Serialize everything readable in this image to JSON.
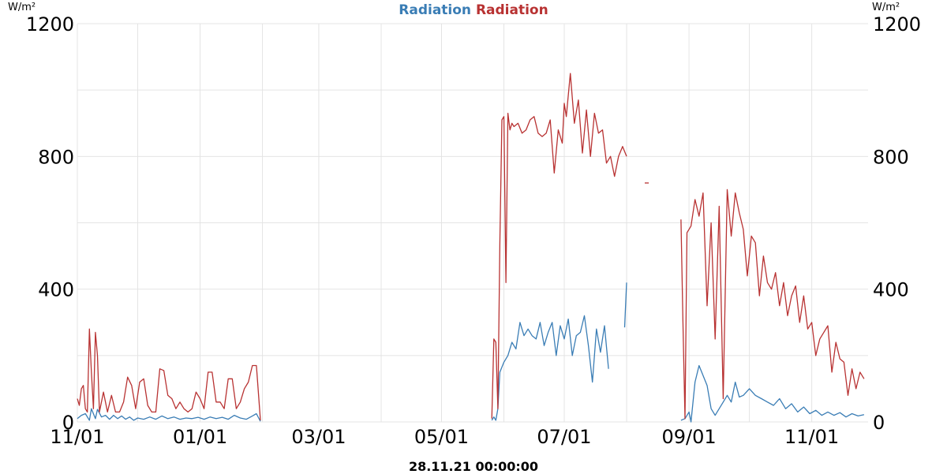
{
  "chart_data": {
    "type": "line",
    "title_parts": [
      "Radiation",
      "Radiation"
    ],
    "unit_left": "W/m²",
    "unit_right": "W/m²",
    "timestamp": "28.11.21 00:00:00",
    "x_ticks": [
      "11/01",
      "01/01",
      "03/01",
      "05/01",
      "07/01",
      "09/01",
      "11/01"
    ],
    "x_tick_dates": [
      "2020-11-01",
      "2021-01-01",
      "2021-03-01",
      "2021-05-01",
      "2021-07-01",
      "2021-09-01",
      "2021-11-01"
    ],
    "xlim": [
      "2020-11-01",
      "2021-11-29"
    ],
    "ylim": [
      0,
      1200
    ],
    "y_ticks": [
      0,
      400,
      800,
      1200
    ],
    "grid": true,
    "series": [
      {
        "name": "Radiation",
        "color": "#3a7db5",
        "segments": [
          [
            [
              "2020-11-01",
              10
            ],
            [
              "2020-11-03",
              20
            ],
            [
              "2020-11-05",
              25
            ],
            [
              "2020-11-07",
              5
            ],
            [
              "2020-11-08",
              40
            ],
            [
              "2020-11-10",
              10
            ],
            [
              "2020-11-11",
              38
            ],
            [
              "2020-11-13",
              15
            ],
            [
              "2020-11-15",
              20
            ],
            [
              "2020-11-17",
              8
            ],
            [
              "2020-11-19",
              20
            ],
            [
              "2020-11-21",
              10
            ],
            [
              "2020-11-23",
              18
            ],
            [
              "2020-11-25",
              8
            ],
            [
              "2020-11-27",
              15
            ],
            [
              "2020-11-29",
              5
            ],
            [
              "2020-12-01",
              12
            ],
            [
              "2020-12-04",
              8
            ],
            [
              "2020-12-07",
              15
            ],
            [
              "2020-12-10",
              8
            ],
            [
              "2020-12-13",
              18
            ],
            [
              "2020-12-16",
              10
            ],
            [
              "2020-12-19",
              15
            ],
            [
              "2020-12-22",
              8
            ],
            [
              "2020-12-25",
              12
            ],
            [
              "2020-12-28",
              10
            ],
            [
              "2020-12-31",
              14
            ],
            [
              "2021-01-03",
              8
            ],
            [
              "2021-01-06",
              15
            ],
            [
              "2021-01-09",
              10
            ],
            [
              "2021-01-12",
              14
            ],
            [
              "2021-01-15",
              8
            ],
            [
              "2021-01-18",
              20
            ],
            [
              "2021-01-21",
              12
            ],
            [
              "2021-01-24",
              8
            ],
            [
              "2021-01-27",
              18
            ],
            [
              "2021-01-29",
              25
            ],
            [
              "2021-01-31",
              2
            ]
          ],
          [
            [
              "2021-05-26",
              5
            ],
            [
              "2021-05-27",
              15
            ],
            [
              "2021-05-28",
              5
            ],
            [
              "2021-05-29",
              40
            ],
            [
              "2021-05-30",
              150
            ],
            [
              "2021-06-01",
              180
            ],
            [
              "2021-06-03",
              200
            ],
            [
              "2021-06-05",
              240
            ],
            [
              "2021-06-07",
              220
            ],
            [
              "2021-06-09",
              300
            ],
            [
              "2021-06-11",
              260
            ],
            [
              "2021-06-13",
              280
            ],
            [
              "2021-06-15",
              260
            ],
            [
              "2021-06-17",
              250
            ],
            [
              "2021-06-19",
              300
            ],
            [
              "2021-06-21",
              230
            ],
            [
              "2021-06-23",
              270
            ],
            [
              "2021-06-25",
              300
            ],
            [
              "2021-06-27",
              200
            ],
            [
              "2021-06-29",
              290
            ],
            [
              "2021-07-01",
              250
            ],
            [
              "2021-07-03",
              310
            ],
            [
              "2021-07-05",
              200
            ],
            [
              "2021-07-07",
              260
            ],
            [
              "2021-07-09",
              270
            ],
            [
              "2021-07-11",
              320
            ],
            [
              "2021-07-13",
              230
            ],
            [
              "2021-07-15",
              120
            ],
            [
              "2021-07-17",
              280
            ],
            [
              "2021-07-19",
              210
            ],
            [
              "2021-07-21",
              290
            ],
            [
              "2021-07-23",
              160
            ]
          ],
          [
            [
              "2021-07-31",
              285
            ],
            [
              "2021-08-01",
              420
            ]
          ],
          [
            [
              "2021-08-28",
              5
            ],
            [
              "2021-08-30",
              10
            ],
            [
              "2021-09-01",
              30
            ],
            [
              "2021-09-02",
              0
            ],
            [
              "2021-09-04",
              120
            ],
            [
              "2021-09-06",
              170
            ],
            [
              "2021-09-08",
              140
            ],
            [
              "2021-09-10",
              110
            ],
            [
              "2021-09-12",
              40
            ],
            [
              "2021-09-14",
              20
            ],
            [
              "2021-09-16",
              40
            ],
            [
              "2021-09-18",
              60
            ],
            [
              "2021-09-20",
              80
            ],
            [
              "2021-09-22",
              60
            ],
            [
              "2021-09-24",
              120
            ],
            [
              "2021-09-26",
              75
            ],
            [
              "2021-09-28",
              80
            ],
            [
              "2021-10-01",
              100
            ],
            [
              "2021-10-04",
              80
            ],
            [
              "2021-10-07",
              70
            ],
            [
              "2021-10-10",
              60
            ],
            [
              "2021-10-13",
              50
            ],
            [
              "2021-10-16",
              70
            ],
            [
              "2021-10-19",
              40
            ],
            [
              "2021-10-22",
              55
            ],
            [
              "2021-10-25",
              30
            ],
            [
              "2021-10-28",
              45
            ],
            [
              "2021-10-31",
              25
            ],
            [
              "2021-11-03",
              35
            ],
            [
              "2021-11-06",
              20
            ],
            [
              "2021-11-09",
              30
            ],
            [
              "2021-11-12",
              20
            ],
            [
              "2021-11-15",
              28
            ],
            [
              "2021-11-18",
              15
            ],
            [
              "2021-11-21",
              25
            ],
            [
              "2021-11-24",
              18
            ],
            [
              "2021-11-27",
              22
            ]
          ]
        ]
      },
      {
        "name": "Radiation",
        "color": "#b83232",
        "segments": [
          [
            [
              "2020-11-01",
              70
            ],
            [
              "2020-11-02",
              50
            ],
            [
              "2020-11-03",
              100
            ],
            [
              "2020-11-04",
              110
            ],
            [
              "2020-11-05",
              40
            ],
            [
              "2020-11-06",
              30
            ],
            [
              "2020-11-07",
              280
            ],
            [
              "2020-11-08",
              150
            ],
            [
              "2020-11-09",
              40
            ],
            [
              "2020-11-10",
              270
            ],
            [
              "2020-11-11",
              200
            ],
            [
              "2020-11-12",
              30
            ],
            [
              "2020-11-14",
              90
            ],
            [
              "2020-11-16",
              30
            ],
            [
              "2020-11-18",
              80
            ],
            [
              "2020-11-20",
              30
            ],
            [
              "2020-11-22",
              30
            ],
            [
              "2020-11-24",
              60
            ],
            [
              "2020-11-26",
              135
            ],
            [
              "2020-11-28",
              110
            ],
            [
              "2020-11-30",
              40
            ],
            [
              "2020-12-02",
              120
            ],
            [
              "2020-12-04",
              130
            ],
            [
              "2020-12-06",
              50
            ],
            [
              "2020-12-08",
              30
            ],
            [
              "2020-12-10",
              30
            ],
            [
              "2020-12-12",
              160
            ],
            [
              "2020-12-14",
              155
            ],
            [
              "2020-12-16",
              80
            ],
            [
              "2020-12-18",
              70
            ],
            [
              "2020-12-20",
              40
            ],
            [
              "2020-12-22",
              60
            ],
            [
              "2020-12-24",
              40
            ],
            [
              "2020-12-26",
              30
            ],
            [
              "2020-12-28",
              40
            ],
            [
              "2020-12-30",
              90
            ],
            [
              "2021-01-01",
              70
            ],
            [
              "2021-01-03",
              40
            ],
            [
              "2021-01-05",
              150
            ],
            [
              "2021-01-07",
              150
            ],
            [
              "2021-01-09",
              60
            ],
            [
              "2021-01-11",
              60
            ],
            [
              "2021-01-13",
              40
            ],
            [
              "2021-01-15",
              130
            ],
            [
              "2021-01-17",
              130
            ],
            [
              "2021-01-19",
              40
            ],
            [
              "2021-01-21",
              60
            ],
            [
              "2021-01-23",
              100
            ],
            [
              "2021-01-25",
              120
            ],
            [
              "2021-01-27",
              170
            ],
            [
              "2021-01-29",
              170
            ],
            [
              "2021-01-31",
              5
            ]
          ],
          [
            [
              "2021-05-26",
              10
            ],
            [
              "2021-05-27",
              250
            ],
            [
              "2021-05-28",
              240
            ],
            [
              "2021-05-29",
              40
            ],
            [
              "2021-05-30",
              540
            ],
            [
              "2021-05-31",
              910
            ],
            [
              "2021-06-01",
              920
            ],
            [
              "2021-06-02",
              420
            ],
            [
              "2021-06-03",
              930
            ],
            [
              "2021-06-04",
              880
            ],
            [
              "2021-06-05",
              900
            ],
            [
              "2021-06-06",
              890
            ],
            [
              "2021-06-08",
              900
            ],
            [
              "2021-06-10",
              870
            ],
            [
              "2021-06-12",
              880
            ],
            [
              "2021-06-14",
              910
            ],
            [
              "2021-06-16",
              920
            ],
            [
              "2021-06-18",
              870
            ],
            [
              "2021-06-20",
              860
            ],
            [
              "2021-06-22",
              870
            ],
            [
              "2021-06-24",
              910
            ],
            [
              "2021-06-26",
              750
            ],
            [
              "2021-06-28",
              880
            ],
            [
              "2021-06-30",
              840
            ],
            [
              "2021-07-01",
              960
            ],
            [
              "2021-07-02",
              920
            ],
            [
              "2021-07-04",
              1050
            ],
            [
              "2021-07-06",
              900
            ],
            [
              "2021-07-08",
              970
            ],
            [
              "2021-07-10",
              810
            ],
            [
              "2021-07-12",
              940
            ],
            [
              "2021-07-14",
              800
            ],
            [
              "2021-07-16",
              930
            ],
            [
              "2021-07-18",
              870
            ],
            [
              "2021-07-20",
              880
            ],
            [
              "2021-07-22",
              780
            ],
            [
              "2021-07-24",
              800
            ],
            [
              "2021-07-26",
              740
            ],
            [
              "2021-07-28",
              800
            ],
            [
              "2021-07-30",
              830
            ],
            [
              "2021-08-01",
              800
            ]
          ],
          [
            [
              "2021-08-10",
              720
            ],
            [
              "2021-08-12",
              720
            ]
          ],
          [
            [
              "2021-08-28",
              610
            ],
            [
              "2021-08-29",
              300
            ],
            [
              "2021-08-30",
              10
            ],
            [
              "2021-08-31",
              570
            ],
            [
              "2021-09-02",
              590
            ],
            [
              "2021-09-04",
              670
            ],
            [
              "2021-09-06",
              620
            ],
            [
              "2021-09-08",
              690
            ],
            [
              "2021-09-10",
              350
            ],
            [
              "2021-09-12",
              600
            ],
            [
              "2021-09-14",
              250
            ],
            [
              "2021-09-16",
              650
            ],
            [
              "2021-09-18",
              70
            ],
            [
              "2021-09-20",
              700
            ],
            [
              "2021-09-22",
              560
            ],
            [
              "2021-09-24",
              690
            ],
            [
              "2021-09-26",
              630
            ],
            [
              "2021-09-28",
              580
            ],
            [
              "2021-09-30",
              440
            ],
            [
              "2021-10-02",
              560
            ],
            [
              "2021-10-04",
              540
            ],
            [
              "2021-10-06",
              380
            ],
            [
              "2021-10-08",
              500
            ],
            [
              "2021-10-10",
              420
            ],
            [
              "2021-10-12",
              400
            ],
            [
              "2021-10-14",
              450
            ],
            [
              "2021-10-16",
              350
            ],
            [
              "2021-10-18",
              420
            ],
            [
              "2021-10-20",
              320
            ],
            [
              "2021-10-22",
              380
            ],
            [
              "2021-10-24",
              410
            ],
            [
              "2021-10-26",
              300
            ],
            [
              "2021-10-28",
              380
            ],
            [
              "2021-10-30",
              280
            ],
            [
              "2021-11-01",
              300
            ],
            [
              "2021-11-03",
              200
            ],
            [
              "2021-11-05",
              250
            ],
            [
              "2021-11-07",
              270
            ],
            [
              "2021-11-09",
              290
            ],
            [
              "2021-11-11",
              150
            ],
            [
              "2021-11-13",
              240
            ],
            [
              "2021-11-15",
              190
            ],
            [
              "2021-11-17",
              180
            ],
            [
              "2021-11-19",
              80
            ],
            [
              "2021-11-21",
              160
            ],
            [
              "2021-11-23",
              100
            ],
            [
              "2021-11-25",
              150
            ],
            [
              "2021-11-27",
              130
            ]
          ]
        ]
      }
    ]
  }
}
